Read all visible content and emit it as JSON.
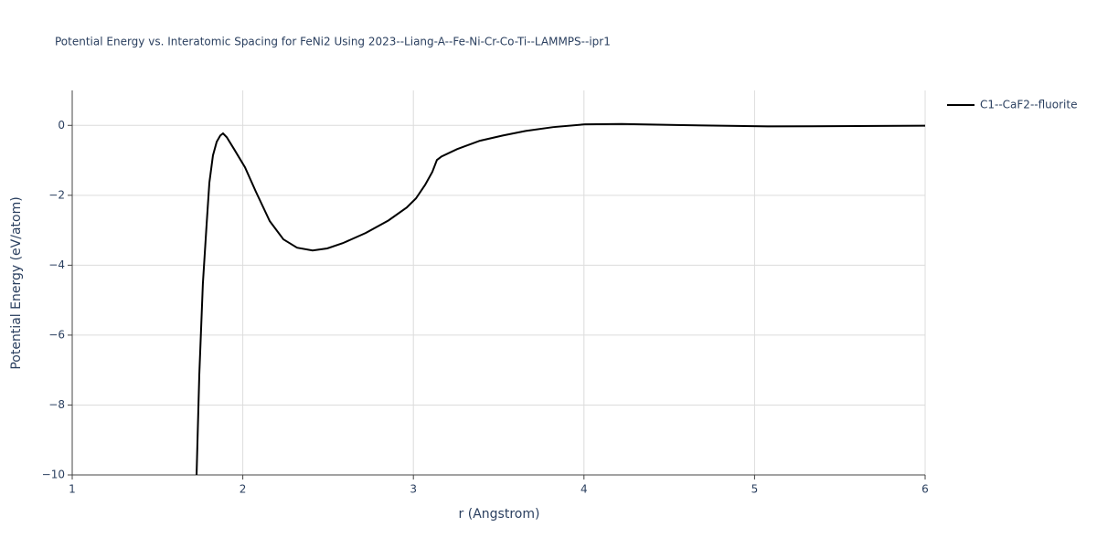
{
  "chart_data": {
    "type": "line",
    "title": "Potential Energy vs. Interatomic Spacing for FeNi2 Using 2023--Liang-A--Fe-Ni-Cr-Co-Ti--LAMMPS--ipr1",
    "x_label": "r (Angstrom)",
    "y_label": "Potential Energy (eV/atom)",
    "x": [
      1.729,
      1.745,
      1.766,
      1.788,
      1.804,
      1.825,
      1.847,
      1.868,
      1.884,
      1.906,
      1.949,
      2.013,
      2.077,
      2.158,
      2.238,
      2.318,
      2.409,
      2.495,
      2.586,
      2.72,
      2.854,
      2.961,
      3.015,
      3.069,
      3.111,
      3.138,
      3.165,
      3.256,
      3.39,
      3.524,
      3.658,
      3.819,
      4.006,
      4.221,
      4.542,
      5.078,
      6.0
    ],
    "series": [
      {
        "name": "C1--CaF2--fluorite",
        "color": "#000000",
        "values": [
          -10,
          -7.13,
          -4.52,
          -2.82,
          -1.64,
          -0.86,
          -0.47,
          -0.29,
          -0.23,
          -0.34,
          -0.68,
          -1.2,
          -1.9,
          -2.74,
          -3.26,
          -3.5,
          -3.58,
          -3.52,
          -3.37,
          -3.08,
          -2.72,
          -2.35,
          -2.09,
          -1.7,
          -1.33,
          -0.99,
          -0.89,
          -0.68,
          -0.44,
          -0.29,
          -0.16,
          -0.05,
          0.03,
          0.04,
          0.01,
          -0.03,
          -0.01
        ]
      }
    ],
    "xlim": [
      1,
      6
    ],
    "xticks": [
      1,
      2,
      3,
      4,
      5,
      6
    ],
    "ylim": [
      -10,
      1
    ],
    "yticks": [
      {
        "value": -10,
        "label": "−10"
      },
      {
        "value": -8,
        "label": "−8"
      },
      {
        "value": -6,
        "label": "−6"
      },
      {
        "value": -4,
        "label": "−4"
      },
      {
        "value": -2,
        "label": "−2"
      },
      0
    ],
    "grid": true,
    "legend": "top-right"
  }
}
